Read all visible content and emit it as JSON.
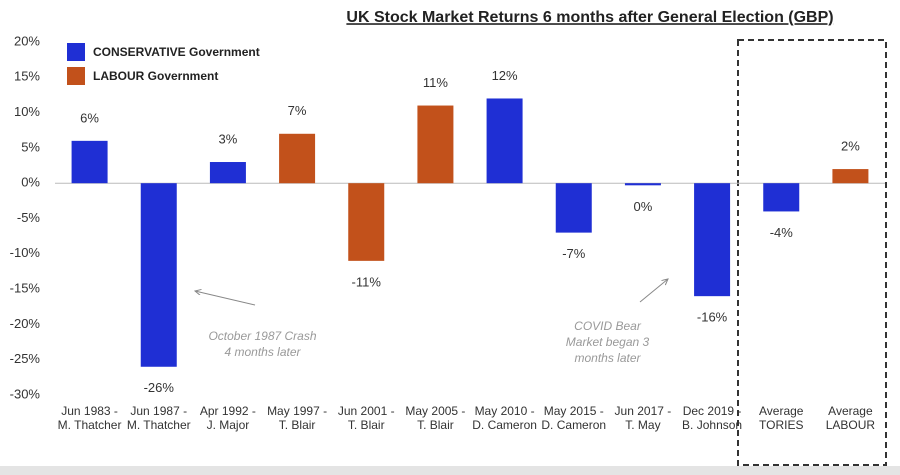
{
  "chart_data": {
    "type": "bar",
    "title": "UK Stock Market Returns 6 months after General Election (GBP)",
    "categories": [
      "Jun 1983 - M. Thatcher",
      "Jun 1987 - M. Thatcher",
      "Apr 1992 - J. Major",
      "May 1997 - T. Blair",
      "Jun 2001 - T. Blair",
      "May 2005 - T. Blair",
      "May 2010 - D. Cameron",
      "May 2015 - D. Cameron",
      "Jun 2017 - T. May",
      "Dec 2019 - B. Johnson",
      "Average TORIES",
      "Average LABOUR"
    ],
    "series": [
      {
        "name": "CONSERVATIVE Government",
        "color": "#1f2fd4",
        "values": [
          6,
          -26,
          3,
          null,
          null,
          null,
          12,
          -7,
          -0.3,
          -16,
          -4,
          null
        ],
        "value_labels": [
          "6%",
          "-26%",
          "3%",
          null,
          null,
          null,
          "12%",
          "-7%",
          "0%",
          "-16%",
          "-4%",
          null
        ]
      },
      {
        "name": "LABOUR Government",
        "color": "#c2511b",
        "values": [
          null,
          null,
          null,
          7,
          -11,
          11,
          null,
          null,
          null,
          null,
          null,
          2
        ],
        "value_labels": [
          null,
          null,
          null,
          "7%",
          "-11%",
          "11%",
          null,
          null,
          null,
          null,
          null,
          "2%"
        ]
      }
    ],
    "ylim": [
      -30,
      20
    ],
    "yticks": [
      {
        "value": -30,
        "label": "-30%"
      },
      {
        "value": -25,
        "label": "-25%"
      },
      {
        "value": -20,
        "label": "-20%"
      },
      {
        "value": -15,
        "label": "-15%"
      },
      {
        "value": -10,
        "label": "-10%"
      },
      {
        "value": -5,
        "label": "-5%"
      },
      {
        "value": 0,
        "label": "0%"
      },
      {
        "value": 5,
        "label": "5%"
      },
      {
        "value": 10,
        "label": "10%"
      },
      {
        "value": 15,
        "label": "15%"
      },
      {
        "value": 20,
        "label": "20%"
      }
    ],
    "annotations": [
      "October 1987 Crash 4 months later",
      "COVID Bear Market began 3 months later"
    ]
  }
}
